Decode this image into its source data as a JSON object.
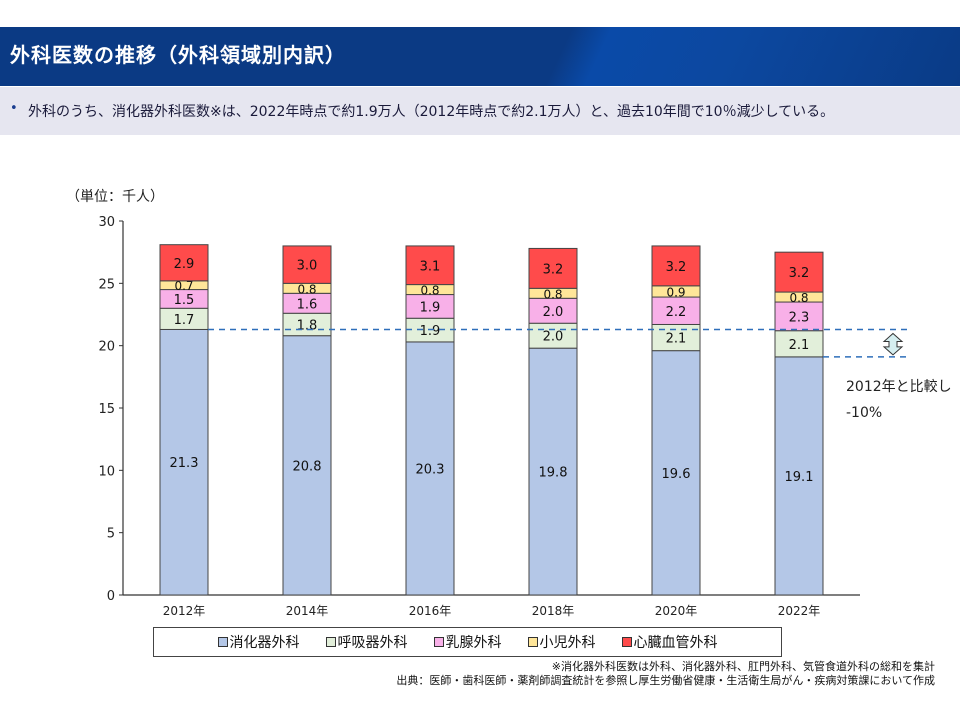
{
  "header": {
    "title": "外科医数の推移（外科領域別内訳）"
  },
  "summary": {
    "bullet": "•",
    "text": "外科のうち、消化器外科医数※は、2022年時点で約1.9万人（2012年時点で約2.1万人）と、過去10年間で10％減少している。"
  },
  "annotation": {
    "line1": "2012年と比較し",
    "line2": "-10%"
  },
  "footnotes": {
    "note": "※消化器外科医数は外科、消化器外科、肛門外科、気管食道外科の総和を集計",
    "source": "出典：医師・歯科医師・薬剤師調査統計を参照し厚生労働省健康・生活衛生局がん・疾病対策課において作成"
  },
  "chart_data": {
    "type": "bar",
    "stacked": true,
    "title": "外科医数の推移（外科領域別内訳）",
    "ylabel": "（単位：千人）",
    "xlabel": "",
    "ylim": [
      0,
      30
    ],
    "yticks": [
      0,
      5,
      10,
      15,
      20,
      25,
      30
    ],
    "categories": [
      "2012年",
      "2014年",
      "2016年",
      "2018年",
      "2020年",
      "2022年"
    ],
    "series": [
      {
        "name": "消化器外科",
        "color": "#b4c7e7",
        "values": [
          21.3,
          20.8,
          20.3,
          19.8,
          19.6,
          19.1
        ]
      },
      {
        "name": "呼吸器外科",
        "color": "#e2efda",
        "values": [
          1.7,
          1.8,
          1.9,
          2.0,
          2.1,
          2.1
        ]
      },
      {
        "name": "乳腺外科",
        "color": "#f8b0e8",
        "values": [
          1.5,
          1.6,
          1.9,
          2.0,
          2.2,
          2.3
        ]
      },
      {
        "name": "小児外科",
        "color": "#ffe699",
        "values": [
          0.7,
          0.8,
          0.8,
          0.8,
          0.9,
          0.8
        ]
      },
      {
        "name": "心臓血管外科",
        "color": "#ff4b4b",
        "values": [
          2.9,
          3.0,
          3.1,
          3.2,
          3.2,
          3.2
        ]
      }
    ],
    "reference_lines": [
      {
        "label": "2012年 消化器外科",
        "value": 21.3
      },
      {
        "label": "2022年 消化器外科",
        "value": 19.1
      }
    ],
    "legend_position": "bottom",
    "grid": false
  }
}
